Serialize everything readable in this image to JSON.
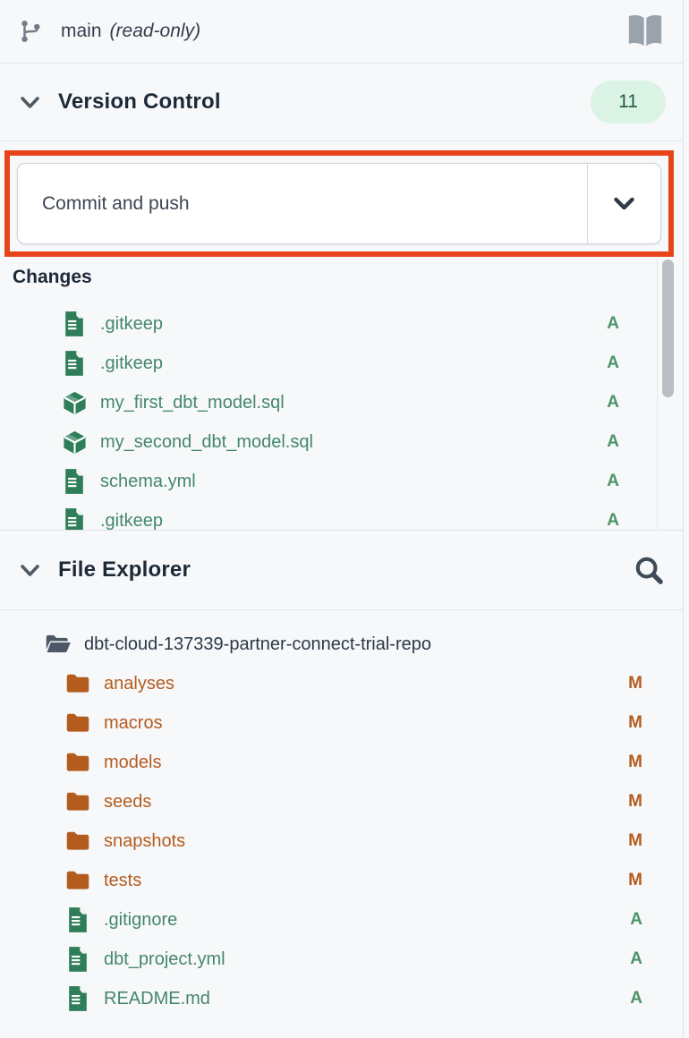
{
  "top_bar": {
    "branch_name": "main",
    "branch_mode": "(read-only)"
  },
  "version_control": {
    "title": "Version Control",
    "badge_count": "11",
    "commit_button_label": "Commit and push",
    "changes_label": "Changes",
    "changes": [
      {
        "name": ".gitkeep",
        "icon": "file-icon",
        "status": "A",
        "color": "green",
        "level": 0
      },
      {
        "name": ".gitkeep",
        "icon": "file-icon",
        "status": "A",
        "color": "green",
        "level": 0
      },
      {
        "name": "my_first_dbt_model.sql",
        "icon": "model-icon",
        "status": "A",
        "color": "green",
        "level": 0
      },
      {
        "name": "my_second_dbt_model.sql",
        "icon": "model-icon",
        "status": "A",
        "color": "green",
        "level": 0
      },
      {
        "name": "schema.yml",
        "icon": "file-icon",
        "status": "A",
        "color": "green",
        "level": 0
      },
      {
        "name": ".gitkeep",
        "icon": "file-icon",
        "status": "A",
        "color": "green",
        "level": 0
      }
    ]
  },
  "file_explorer": {
    "title": "File Explorer",
    "tree": [
      {
        "name": "dbt-cloud-137339-partner-connect-trial-repo",
        "icon": "folder-open-icon",
        "status": "",
        "color": "dark",
        "level": 0
      },
      {
        "name": "analyses",
        "icon": "folder-icon",
        "status": "M",
        "color": "orange",
        "level": 1
      },
      {
        "name": "macros",
        "icon": "folder-icon",
        "status": "M",
        "color": "orange",
        "level": 1
      },
      {
        "name": "models",
        "icon": "folder-icon",
        "status": "M",
        "color": "orange",
        "level": 1
      },
      {
        "name": "seeds",
        "icon": "folder-icon",
        "status": "M",
        "color": "orange",
        "level": 1
      },
      {
        "name": "snapshots",
        "icon": "folder-icon",
        "status": "M",
        "color": "orange",
        "level": 1
      },
      {
        "name": "tests",
        "icon": "folder-icon",
        "status": "M",
        "color": "orange",
        "level": 1
      },
      {
        "name": ".gitignore",
        "icon": "file-icon",
        "status": "A",
        "color": "green",
        "level": 1
      },
      {
        "name": "dbt_project.yml",
        "icon": "file-icon",
        "status": "A",
        "color": "green",
        "level": 1
      },
      {
        "name": "README.md",
        "icon": "file-icon",
        "status": "A",
        "color": "green",
        "level": 1
      }
    ]
  },
  "colors": {
    "annotation_red": "#e8441c",
    "green_text": "#44876a",
    "green_icon": "#2e7e5a",
    "orange": "#b35c1e",
    "badge_bg": "#daf3e4",
    "badge_text": "#1f5c42",
    "panel_bg": "#f7f8fa"
  }
}
